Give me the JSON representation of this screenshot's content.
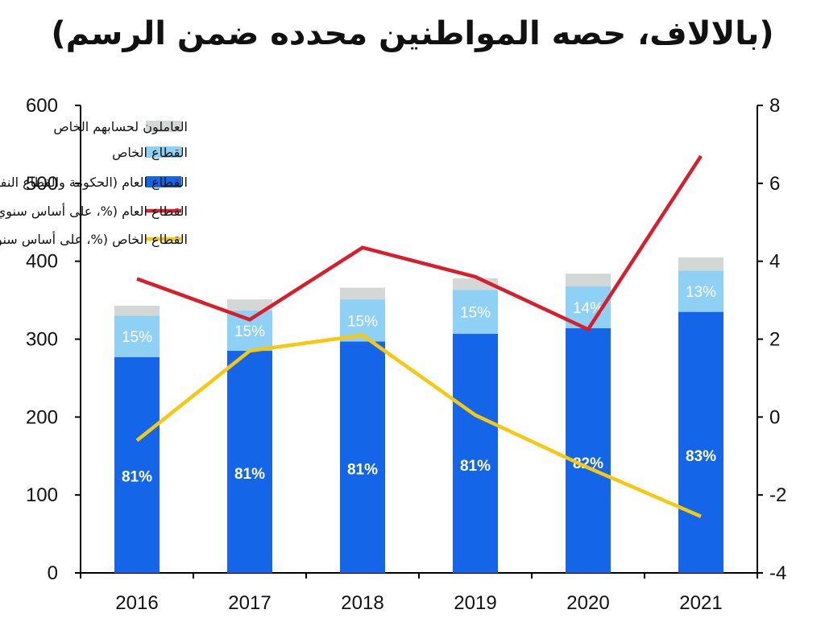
{
  "chart_data": {
    "type": "bar",
    "title": "(بالالاف، حصه المواطنين محدده ضمن الرسم)",
    "categories": [
      "2016",
      "2017",
      "2018",
      "2019",
      "2020",
      "2021"
    ],
    "ylim_left": [
      0,
      600
    ],
    "yticks_left": [
      "0",
      "100",
      "200",
      "300",
      "400",
      "500",
      "600"
    ],
    "ylim_right": [
      -4,
      8
    ],
    "yticks_right": [
      "-4",
      "-2",
      "0",
      "2",
      "4",
      "6",
      "8"
    ],
    "stacked_series": [
      {
        "name": "القطاع العام (الحكومة والقطاع النفطي)",
        "color": "#1565E8",
        "values": [
          277,
          285,
          297,
          307,
          314,
          335
        ],
        "share_labels": [
          "81%",
          "81%",
          "81%",
          "81%",
          "82%",
          "83%"
        ]
      },
      {
        "name": "القطاع الخاص",
        "color": "#8FD0F5",
        "values": [
          53,
          52,
          54,
          56,
          54,
          53
        ],
        "share_labels": [
          "15%",
          "15%",
          "15%",
          "15%",
          "14%",
          "13%"
        ]
      },
      {
        "name": "العاملون لحسابهم الخاص",
        "color": "#D3D7D6",
        "values": [
          13,
          14,
          15,
          15,
          16,
          17
        ]
      }
    ],
    "line_series": [
      {
        "name": "القطاع العام (%، على أساس سنوي، الجانب الأيمن)",
        "color": "#D81E2C",
        "axis": "right",
        "values": [
          3.55,
          2.5,
          4.35,
          3.6,
          2.25,
          6.7
        ]
      },
      {
        "name": "القطاع الخاص (%، على أساس سنوي، الجانب الأيمن)",
        "color": "#F6C90E",
        "axis": "right",
        "values": [
          -0.6,
          1.7,
          2.1,
          0.05,
          -1.3,
          -2.55
        ]
      }
    ],
    "legend_position": "top-center"
  }
}
